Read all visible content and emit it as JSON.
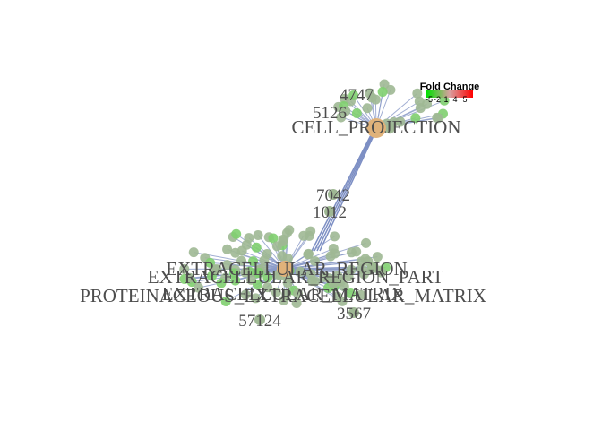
{
  "legend": {
    "title": "Fold Change",
    "ticks": [
      -5,
      -2,
      1,
      4,
      5
    ]
  },
  "nodes": [
    {
      "label": "CELL_PROJECTION"
    },
    {
      "label": "EXTRACELLULAR_REGION"
    },
    {
      "label": "EXTRACELLULAR_REGION_PART"
    },
    {
      "label": "PROTEINACEOUS_EXTRACELLULAR_MATRIX"
    },
    {
      "label": "EXTRACELLULAR_MATRIX"
    },
    {
      "label": "7042"
    },
    {
      "label": "1012"
    },
    {
      "label": "57124"
    },
    {
      "label": "3567"
    },
    {
      "label": "4747"
    },
    {
      "label": "5126"
    }
  ]
}
